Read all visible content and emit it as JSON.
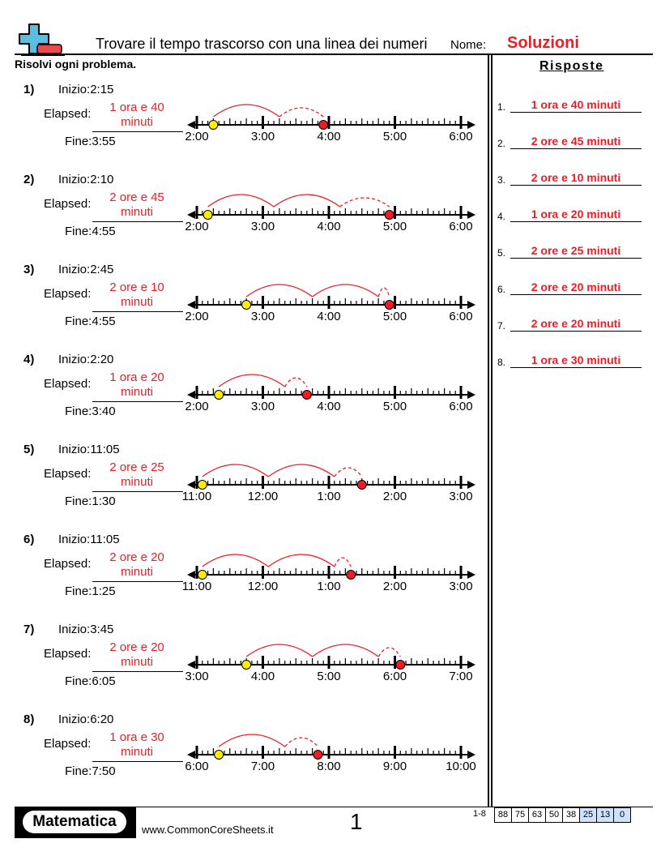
{
  "header": {
    "title": "Trovare il tempo trascorso con una linea dei numeri",
    "name_label": "Nome:",
    "name_value": "Soluzioni",
    "instructions": "Risolvi ogni problema.",
    "answers_title": "Risposte",
    "logo_colors": {
      "plus": "#5bbde0",
      "minus": "#e84a4f"
    }
  },
  "labels": {
    "start": "Inizio:",
    "elapsed": "Elapsed:",
    "end": "Fine:"
  },
  "colors": {
    "answer": "#ee1c25",
    "start_dot": "#ffee00",
    "end_dot": "#ee1c25",
    "arc": "#ee1c25"
  },
  "problems": [
    {
      "num": "1)",
      "start": "2:15",
      "end": "3:55",
      "elapsed": "1 ora e 40 minuti",
      "elapsed_l1": "1 ora e 40",
      "elapsed_l2": "minuti",
      "hours": [
        "2:00",
        "3:00",
        "4:00",
        "5:00",
        "6:00"
      ],
      "start_min": 15,
      "end_min": 115
    },
    {
      "num": "2)",
      "start": "2:10",
      "end": "4:55",
      "elapsed": "2 ore e 45 minuti",
      "elapsed_l1": "2 ore e 45",
      "elapsed_l2": "minuti",
      "hours": [
        "2:00",
        "3:00",
        "4:00",
        "5:00",
        "6:00"
      ],
      "start_min": 10,
      "end_min": 175
    },
    {
      "num": "3)",
      "start": "2:45",
      "end": "4:55",
      "elapsed": "2 ore e 10 minuti",
      "elapsed_l1": "2 ore e 10",
      "elapsed_l2": "minuti",
      "hours": [
        "2:00",
        "3:00",
        "4:00",
        "5:00",
        "6:00"
      ],
      "start_min": 45,
      "end_min": 175
    },
    {
      "num": "4)",
      "start": "2:20",
      "end": "3:40",
      "elapsed": "1 ora e 20 minuti",
      "elapsed_l1": "1 ora e 20",
      "elapsed_l2": "minuti",
      "hours": [
        "2:00",
        "3:00",
        "4:00",
        "5:00",
        "6:00"
      ],
      "start_min": 20,
      "end_min": 100
    },
    {
      "num": "5)",
      "start": "11:05",
      "end": "1:30",
      "elapsed": "2 ore e 25 minuti",
      "elapsed_l1": "2 ore e 25",
      "elapsed_l2": "minuti",
      "hours": [
        "11:00",
        "12:00",
        "1:00",
        "2:00",
        "3:00"
      ],
      "start_min": 5,
      "end_min": 150
    },
    {
      "num": "6)",
      "start": "11:05",
      "end": "1:25",
      "elapsed": "2 ore e 20 minuti",
      "elapsed_l1": "2 ore e 20",
      "elapsed_l2": "minuti",
      "hours": [
        "11:00",
        "12:00",
        "1:00",
        "2:00",
        "3:00"
      ],
      "start_min": 5,
      "end_min": 140
    },
    {
      "num": "7)",
      "start": "3:45",
      "end": "6:05",
      "elapsed": "2 ore e 20 minuti",
      "elapsed_l1": "2 ore e 20",
      "elapsed_l2": "minuti",
      "hours": [
        "3:00",
        "4:00",
        "5:00",
        "6:00",
        "7:00"
      ],
      "start_min": 45,
      "end_min": 185
    },
    {
      "num": "8)",
      "start": "6:20",
      "end": "7:50",
      "elapsed": "1 ora e 30 minuti",
      "elapsed_l1": "1 ora e 30",
      "elapsed_l2": "minuti",
      "hours": [
        "6:00",
        "7:00",
        "8:00",
        "9:00",
        "10:00"
      ],
      "start_min": 20,
      "end_min": 110
    }
  ],
  "answers": [
    {
      "num": "1.",
      "value": "1 ora e 40 minuti"
    },
    {
      "num": "2.",
      "value": "2 ore e 45 minuti"
    },
    {
      "num": "3.",
      "value": "2 ore e 10 minuti"
    },
    {
      "num": "4.",
      "value": "1 ora e 20 minuti"
    },
    {
      "num": "5.",
      "value": "2 ore e 25 minuti"
    },
    {
      "num": "6.",
      "value": "2 ore e 20 minuti"
    },
    {
      "num": "7.",
      "value": "2 ore e 20 minuti"
    },
    {
      "num": "8.",
      "value": "1 ora e 30 minuti"
    }
  ],
  "footer": {
    "brand": "Matematica",
    "site": "www.CommonCoreSheets.it",
    "page": "1",
    "range": "1-8",
    "scores": [
      "88",
      "75",
      "63",
      "50",
      "38",
      "25",
      "13",
      "0"
    ],
    "highlighted_scores": [
      "25",
      "13",
      "0"
    ]
  }
}
